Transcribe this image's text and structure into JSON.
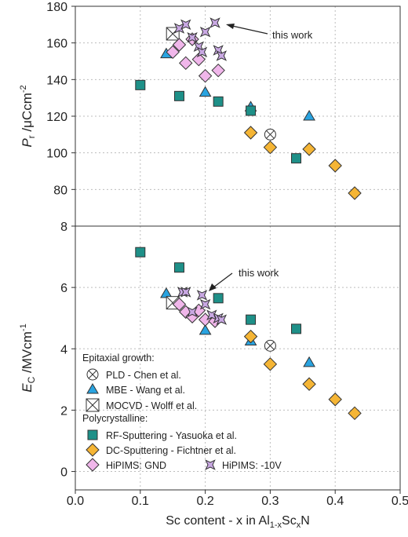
{
  "chart_data": [
    {
      "type": "scatter",
      "panel": "top",
      "ylabel_main": "P",
      "ylabel_sub": "r",
      "ylabel_unit": " /μCcm",
      "ylabel_sup": "-2",
      "ylim": [
        60,
        180
      ],
      "yticks": [
        80,
        100,
        120,
        140,
        160,
        180
      ],
      "grid": true,
      "annotation": "this work",
      "series": [
        {
          "name": "PLD - Chen et al.",
          "marker": "circle-x",
          "color": "#ffffff",
          "points": [
            [
              0.3,
              110
            ]
          ]
        },
        {
          "name": "MBE - Wang et al.",
          "marker": "triangle",
          "color": "#29a3e0",
          "points": [
            [
              0.14,
              154
            ],
            [
              0.2,
              133
            ],
            [
              0.27,
              125
            ],
            [
              0.36,
              120
            ]
          ]
        },
        {
          "name": "MOCVD - Wolff et al.",
          "marker": "square-x",
          "color": "#ffffff",
          "points": [
            [
              0.15,
              165
            ]
          ]
        },
        {
          "name": "RF-Sputtering - Yasuoka et al.",
          "marker": "square",
          "color": "#1e9088",
          "points": [
            [
              0.1,
              137
            ],
            [
              0.16,
              131
            ],
            [
              0.22,
              128
            ],
            [
              0.27,
              123
            ],
            [
              0.34,
              97
            ]
          ]
        },
        {
          "name": "DC-Sputtering - Fichtner et al.",
          "marker": "diamond",
          "color": "#f5b535",
          "points": [
            [
              0.27,
              111
            ],
            [
              0.3,
              103
            ],
            [
              0.36,
              102
            ],
            [
              0.4,
              93
            ],
            [
              0.43,
              78
            ]
          ]
        },
        {
          "name": "HiPIMS: GND",
          "marker": "diamond",
          "color": "#f0b6ea",
          "points": [
            [
              0.15,
              155
            ],
            [
              0.16,
              159
            ],
            [
              0.17,
              149
            ],
            [
              0.18,
              162
            ],
            [
              0.19,
              151
            ],
            [
              0.2,
              142
            ],
            [
              0.22,
              145
            ]
          ]
        },
        {
          "name": "HiPIMS: -10V",
          "marker": "star4",
          "color": "#c9a8e3",
          "points": [
            [
              0.16,
              168
            ],
            [
              0.17,
              170
            ],
            [
              0.18,
              163
            ],
            [
              0.19,
              158
            ],
            [
              0.195,
              155
            ],
            [
              0.2,
              166
            ],
            [
              0.215,
              171
            ],
            [
              0.22,
              156
            ],
            [
              0.225,
              153
            ]
          ]
        }
      ]
    },
    {
      "type": "scatter",
      "panel": "bottom",
      "ylabel_main": "E",
      "ylabel_sub": "C",
      "ylabel_unit": " /MVcm",
      "ylabel_sup": "-1",
      "xlabel_text": "Sc content - x in Al",
      "xlabel_sub1": "1-x",
      "xlabel_mid": "Sc",
      "xlabel_sub2": "x",
      "xlabel_end": "N",
      "xlim": [
        0,
        0.5
      ],
      "xticks": [
        "0.0",
        "0.1",
        "0.2",
        "0.3",
        "0.4",
        "0.5"
      ],
      "ylim": [
        -0.6,
        8
      ],
      "yticks": [
        0,
        2,
        4,
        6,
        8
      ],
      "grid": true,
      "annotation": "this work",
      "series": [
        {
          "name": "PLD - Chen et al.",
          "marker": "circle-x",
          "color": "#ffffff",
          "points": [
            [
              0.3,
              4.1
            ]
          ]
        },
        {
          "name": "MBE - Wang et al.",
          "marker": "triangle",
          "color": "#29a3e0",
          "points": [
            [
              0.14,
              5.8
            ],
            [
              0.2,
              4.6
            ],
            [
              0.27,
              4.25
            ],
            [
              0.36,
              3.55
            ]
          ]
        },
        {
          "name": "MOCVD - Wolff et al.",
          "marker": "square-x",
          "color": "#ffffff",
          "points": [
            [
              0.15,
              5.5
            ]
          ]
        },
        {
          "name": "RF-Sputtering - Yasuoka et al.",
          "marker": "square",
          "color": "#1e9088",
          "points": [
            [
              0.1,
              7.15
            ],
            [
              0.16,
              6.65
            ],
            [
              0.22,
              5.65
            ],
            [
              0.27,
              4.95
            ],
            [
              0.34,
              4.65
            ]
          ]
        },
        {
          "name": "DC-Sputtering - Fichtner et al.",
          "marker": "diamond",
          "color": "#f5b535",
          "points": [
            [
              0.27,
              4.4
            ],
            [
              0.3,
              3.5
            ],
            [
              0.36,
              2.85
            ],
            [
              0.4,
              2.35
            ],
            [
              0.43,
              1.9
            ]
          ]
        },
        {
          "name": "HiPIMS: GND",
          "marker": "diamond",
          "color": "#f0b6ea",
          "points": [
            [
              0.16,
              5.45
            ],
            [
              0.17,
              5.2
            ],
            [
              0.18,
              5.05
            ],
            [
              0.19,
              5.25
            ],
            [
              0.2,
              4.95
            ],
            [
              0.215,
              4.9
            ]
          ]
        },
        {
          "name": "HiPIMS: -10V",
          "marker": "star4",
          "color": "#c9a8e3",
          "points": [
            [
              0.165,
              5.85
            ],
            [
              0.17,
              5.85
            ],
            [
              0.18,
              5.2
            ],
            [
              0.195,
              5.75
            ],
            [
              0.2,
              5.45
            ],
            [
              0.21,
              5.1
            ],
            [
              0.22,
              5.0
            ],
            [
              0.225,
              4.95
            ]
          ]
        }
      ]
    }
  ],
  "legend": {
    "header_epitaxial": "Epitaxial growth:",
    "header_poly": "Polycrystalline:",
    "items": [
      {
        "label": "PLD - Chen et al.",
        "marker": "circle-x",
        "color": "#ffffff"
      },
      {
        "label": "MBE - Wang et al.",
        "marker": "triangle",
        "color": "#29a3e0"
      },
      {
        "label": "MOCVD - Wolff et al.",
        "marker": "square-x",
        "color": "#ffffff"
      },
      {
        "label": "RF-Sputtering - Yasuoka et al.",
        "marker": "square",
        "color": "#1e9088"
      },
      {
        "label": "DC-Sputtering - Fichtner et al.",
        "marker": "diamond",
        "color": "#f5b535"
      },
      {
        "label": "HiPIMS: GND",
        "marker": "diamond",
        "color": "#f0b6ea"
      },
      {
        "label": "HiPIMS: -10V",
        "marker": "star4",
        "color": "#c9a8e3"
      }
    ]
  }
}
